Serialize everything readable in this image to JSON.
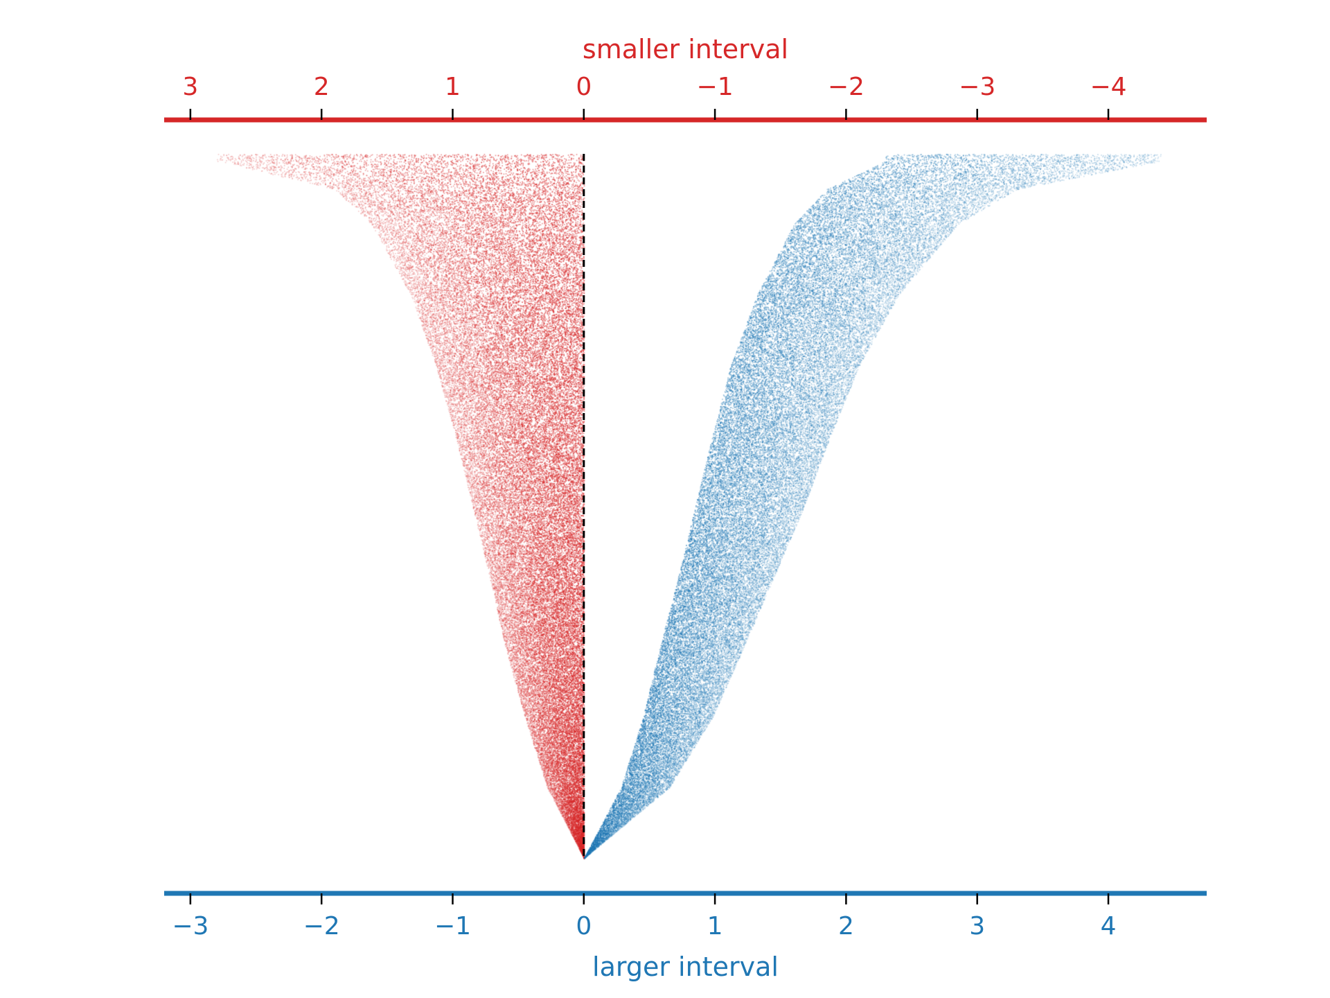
{
  "chart_data": {
    "type": "scatter",
    "title": "",
    "colors": {
      "smaller": "#d62728",
      "larger": "#1f77b4",
      "zero_line": "#000000"
    },
    "top_axis": {
      "label": "smaller interval",
      "reversed": true,
      "ticks": [
        {
          "value": 3,
          "label": "3"
        },
        {
          "value": 2,
          "label": "2"
        },
        {
          "value": 1,
          "label": "1"
        },
        {
          "value": 0,
          "label": "0"
        },
        {
          "value": -1,
          "label": "−1"
        },
        {
          "value": -2,
          "label": "−2"
        },
        {
          "value": -3,
          "label": "−3"
        },
        {
          "value": -4,
          "label": "−4"
        }
      ]
    },
    "bottom_axis": {
      "label": "larger interval",
      "range": [
        -3.2,
        4.75
      ],
      "ticks": [
        {
          "value": -3,
          "label": "−3"
        },
        {
          "value": -2,
          "label": "−2"
        },
        {
          "value": -1,
          "label": "−1"
        },
        {
          "value": 0,
          "label": "0"
        },
        {
          "value": 1,
          "label": "1"
        },
        {
          "value": 2,
          "label": "2"
        },
        {
          "value": 3,
          "label": "3"
        },
        {
          "value": 4,
          "label": "4"
        }
      ]
    },
    "y_axis": {
      "visible": false,
      "range": [
        0,
        1
      ]
    },
    "grid": false,
    "reference_line": {
      "x": 0,
      "style": "dashed"
    },
    "series": [
      {
        "color": "#d62728",
        "envelope": [
          [
            0.0,
            0.0,
            0.0
          ],
          [
            0.1,
            -0.28,
            0.0
          ],
          [
            0.2,
            -0.45,
            0.0
          ],
          [
            0.3,
            -0.6,
            0.0
          ],
          [
            0.4,
            -0.72,
            0.0
          ],
          [
            0.5,
            -0.85,
            0.0
          ],
          [
            0.6,
            -0.98,
            0.0
          ],
          [
            0.7,
            -1.13,
            0.0
          ],
          [
            0.8,
            -1.32,
            0.0
          ],
          [
            0.9,
            -1.62,
            0.0
          ],
          [
            0.95,
            -1.9,
            0.0
          ],
          [
            0.99,
            -2.8,
            0.0
          ]
        ]
      },
      {
        "color": "#1f77b4",
        "envelope": [
          [
            0.0,
            0.0,
            0.0
          ],
          [
            0.1,
            0.28,
            0.65
          ],
          [
            0.2,
            0.45,
            0.98
          ],
          [
            0.3,
            0.58,
            1.22
          ],
          [
            0.4,
            0.72,
            1.45
          ],
          [
            0.5,
            0.85,
            1.68
          ],
          [
            0.6,
            0.98,
            1.88
          ],
          [
            0.7,
            1.12,
            2.1
          ],
          [
            0.8,
            1.32,
            2.4
          ],
          [
            0.9,
            1.6,
            2.85
          ],
          [
            0.95,
            1.85,
            3.3
          ],
          [
            0.99,
            2.3,
            4.4
          ]
        ]
      }
    ]
  }
}
